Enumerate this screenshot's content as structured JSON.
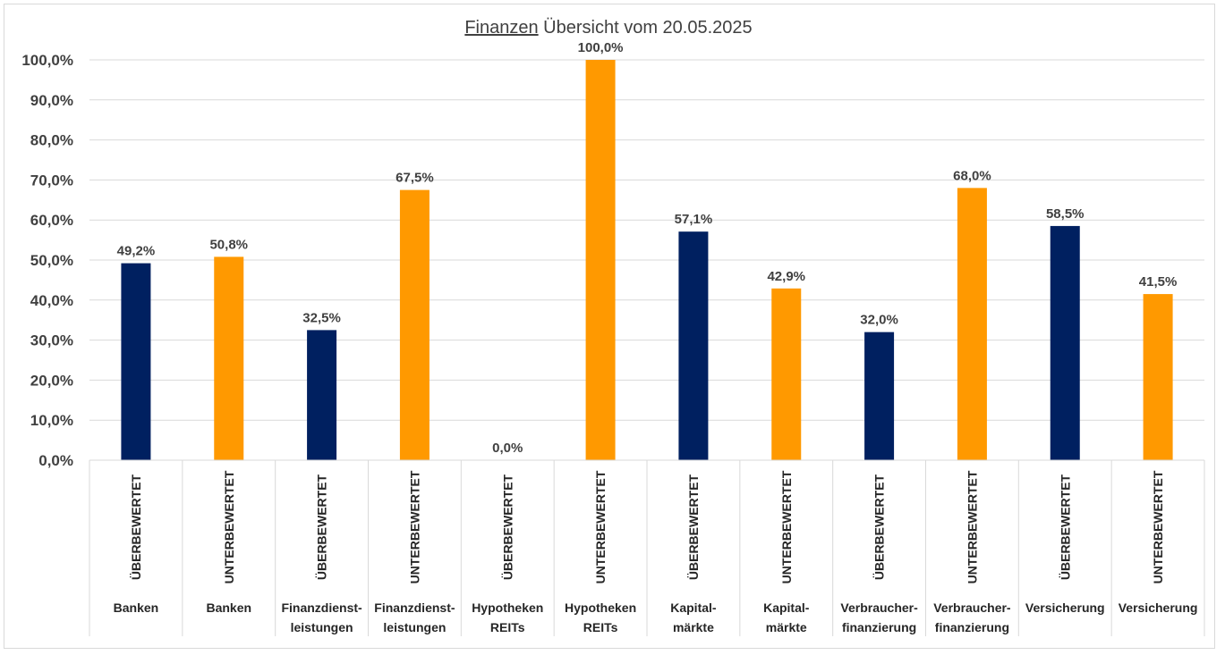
{
  "chart_data": {
    "type": "bar",
    "title_underlined": "Finanzen",
    "title_rest": " Übersicht vom 20.05.2025",
    "xlabel": "",
    "ylabel": "",
    "ylim": [
      0,
      100
    ],
    "y_ticks": [
      "0,0%",
      "10,0%",
      "20,0%",
      "30,0%",
      "40,0%",
      "50,0%",
      "60,0%",
      "70,0%",
      "80,0%",
      "90,0%",
      "100,0%"
    ],
    "grid": true,
    "legend": "none",
    "colors": {
      "ueberbewertet": "#002060",
      "unterbewertet": "#FF9900",
      "grid": "#d9d9d9",
      "text": "#404040"
    },
    "categories": [
      {
        "status": "ÜBERBEWERTET",
        "sector": [
          "Banken"
        ],
        "value": 49.2,
        "label": "49,2%",
        "kind": "ueberbewertet"
      },
      {
        "status": "UNTERBEWERTET",
        "sector": [
          "Banken"
        ],
        "value": 50.8,
        "label": "50,8%",
        "kind": "unterbewertet"
      },
      {
        "status": "ÜBERBEWERTET",
        "sector": [
          "Finanzdienst-",
          "leistungen"
        ],
        "value": 32.5,
        "label": "32,5%",
        "kind": "ueberbewertet"
      },
      {
        "status": "UNTERBEWERTET",
        "sector": [
          "Finanzdienst-",
          "leistungen"
        ],
        "value": 67.5,
        "label": "67,5%",
        "kind": "unterbewertet"
      },
      {
        "status": "ÜBERBEWERTET",
        "sector": [
          "Hypotheken",
          "REITs"
        ],
        "value": 0.0,
        "label": "0,0%",
        "kind": "ueberbewertet"
      },
      {
        "status": "UNTERBEWERTET",
        "sector": [
          "Hypotheken",
          "REITs"
        ],
        "value": 100.0,
        "label": "100,0%",
        "kind": "unterbewertet"
      },
      {
        "status": "ÜBERBEWERTET",
        "sector": [
          "Kapital-",
          "märkte"
        ],
        "value": 57.1,
        "label": "57,1%",
        "kind": "ueberbewertet"
      },
      {
        "status": "UNTERBEWERTET",
        "sector": [
          "Kapital-",
          "märkte"
        ],
        "value": 42.9,
        "label": "42,9%",
        "kind": "unterbewertet"
      },
      {
        "status": "ÜBERBEWERTET",
        "sector": [
          "Verbraucher-",
          "finanzierung"
        ],
        "value": 32.0,
        "label": "32,0%",
        "kind": "ueberbewertet"
      },
      {
        "status": "UNTERBEWERTET",
        "sector": [
          "Verbraucher-",
          "finanzierung"
        ],
        "value": 68.0,
        "label": "68,0%",
        "kind": "unterbewertet"
      },
      {
        "status": "ÜBERBEWERTET",
        "sector": [
          "Versicherung"
        ],
        "value": 58.5,
        "label": "58,5%",
        "kind": "ueberbewertet"
      },
      {
        "status": "UNTERBEWERTET",
        "sector": [
          "Versicherung"
        ],
        "value": 41.5,
        "label": "41,5%",
        "kind": "unterbewertet"
      }
    ]
  }
}
